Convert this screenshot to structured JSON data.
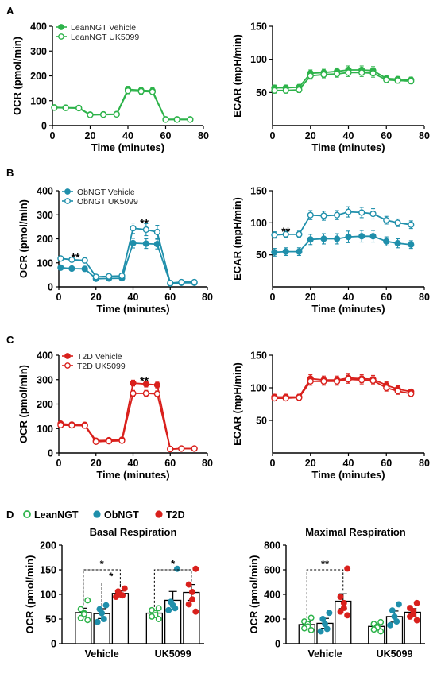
{
  "figure": {
    "panel_letters": [
      "A",
      "B",
      "C",
      "D"
    ],
    "colors": {
      "lean": "#2db34a",
      "ob": "#1f8fab",
      "t2d": "#d9201c",
      "axis": "#000000"
    }
  },
  "chart_data": [
    {
      "id": "A-OCR",
      "panel": "A",
      "type": "line",
      "xlabel": "Time (minutes)",
      "ylabel": "OCR (pmol/min)",
      "xlim": [
        0,
        80
      ],
      "ylim": [
        0,
        400
      ],
      "xticks": [
        0,
        20,
        40,
        60,
        80
      ],
      "yticks": [
        0,
        100,
        200,
        300,
        400
      ],
      "legend": [
        "LeanNGT Vehicle",
        "LeanNGT UK5099"
      ],
      "legend_position": "top-left",
      "marks": [],
      "series": [
        {
          "name": "LeanNGT Vehicle",
          "color": "#2db34a",
          "filled": true,
          "x": [
            1,
            7,
            14,
            20,
            27,
            34,
            40,
            47,
            53,
            60,
            66,
            73
          ],
          "y": [
            73,
            72,
            71,
            44,
            45,
            46,
            146,
            142,
            140,
            25,
            25,
            25
          ],
          "err": [
            4,
            4,
            4,
            4,
            4,
            4,
            12,
            12,
            12,
            3,
            3,
            3
          ]
        },
        {
          "name": "LeanNGT UK5099",
          "color": "#2db34a",
          "filled": false,
          "x": [
            1,
            7,
            14,
            20,
            27,
            34,
            40,
            47,
            53,
            60,
            66,
            73
          ],
          "y": [
            72,
            71,
            70,
            43,
            44,
            45,
            140,
            138,
            136,
            24,
            24,
            24
          ],
          "err": [
            4,
            4,
            4,
            4,
            4,
            4,
            12,
            12,
            12,
            3,
            3,
            3
          ]
        }
      ]
    },
    {
      "id": "A-ECAR",
      "panel": "A",
      "type": "line",
      "xlabel": "Time (minutes)",
      "ylabel": "ECAR (mpH/min)",
      "xlim": [
        0,
        80
      ],
      "ylim": [
        0,
        150
      ],
      "xticks": [
        0,
        20,
        40,
        60,
        80
      ],
      "yticks": [
        50,
        100,
        150
      ],
      "legend": [],
      "marks": [],
      "series": [
        {
          "name": "LeanNGT Vehicle",
          "color": "#2db34a",
          "filled": true,
          "x": [
            1,
            7,
            14,
            20,
            27,
            34,
            40,
            47,
            53,
            60,
            66,
            73
          ],
          "y": [
            57,
            57,
            58,
            79,
            80,
            82,
            84,
            84,
            83,
            71,
            70,
            69
          ],
          "err": [
            4,
            4,
            4,
            5,
            5,
            5,
            6,
            6,
            6,
            4,
            4,
            4
          ]
        },
        {
          "name": "LeanNGT UK5099",
          "color": "#2db34a",
          "filled": false,
          "x": [
            1,
            7,
            14,
            20,
            27,
            34,
            40,
            47,
            53,
            60,
            66,
            73
          ],
          "y": [
            53,
            53,
            54,
            75,
            77,
            78,
            80,
            80,
            79,
            69,
            68,
            67
          ],
          "err": [
            4,
            4,
            4,
            5,
            5,
            5,
            6,
            6,
            6,
            4,
            4,
            4
          ]
        }
      ]
    },
    {
      "id": "B-OCR",
      "panel": "B",
      "type": "line",
      "xlabel": "Time (minutes)",
      "ylabel": "OCR (pmol/min)",
      "xlim": [
        0,
        80
      ],
      "ylim": [
        0,
        400
      ],
      "xticks": [
        0,
        20,
        40,
        60,
        80
      ],
      "yticks": [
        0,
        100,
        200,
        300,
        400
      ],
      "legend": [
        "ObNGT Vehicle",
        "ObNGT UK5099"
      ],
      "legend_position": "top-left",
      "marks": [
        {
          "text": "**",
          "x": 9,
          "y": 128
        },
        {
          "text": "**",
          "x": 46,
          "y": 270
        }
      ],
      "series": [
        {
          "name": "ObNGT Vehicle",
          "color": "#1f8fab",
          "filled": true,
          "x": [
            1,
            7,
            14,
            20,
            27,
            34,
            40,
            47,
            53,
            60,
            66,
            73
          ],
          "y": [
            80,
            76,
            75,
            34,
            35,
            36,
            182,
            180,
            178,
            14,
            17,
            17
          ],
          "err": [
            6,
            6,
            6,
            8,
            8,
            8,
            20,
            20,
            20,
            6,
            6,
            6
          ]
        },
        {
          "name": "ObNGT UK5099",
          "color": "#1f8fab",
          "filled": false,
          "x": [
            1,
            7,
            14,
            20,
            27,
            34,
            40,
            47,
            53,
            60,
            66,
            73
          ],
          "y": [
            118,
            113,
            110,
            42,
            44,
            46,
            244,
            238,
            228,
            16,
            20,
            20
          ],
          "err": [
            8,
            8,
            8,
            8,
            8,
            8,
            22,
            25,
            28,
            6,
            6,
            6
          ]
        }
      ]
    },
    {
      "id": "B-ECAR",
      "panel": "B",
      "type": "line",
      "xlabel": "Time (minutes)",
      "ylabel": "ECAR (mpH/min)",
      "xlim": [
        0,
        80
      ],
      "ylim": [
        0,
        150
      ],
      "xticks": [
        0,
        20,
        40,
        60,
        80
      ],
      "yticks": [
        50,
        100,
        150
      ],
      "legend": [],
      "marks": [
        {
          "text": "**",
          "x": 7,
          "y": 88
        }
      ],
      "series": [
        {
          "name": "ObNGT Vehicle",
          "color": "#1f8fab",
          "filled": true,
          "x": [
            1,
            7,
            14,
            20,
            27,
            34,
            40,
            47,
            53,
            60,
            66,
            73
          ],
          "y": [
            54,
            55,
            55,
            74,
            75,
            75,
            78,
            79,
            79,
            71,
            68,
            66
          ],
          "err": [
            6,
            6,
            6,
            8,
            8,
            8,
            9,
            9,
            9,
            7,
            7,
            6
          ]
        },
        {
          "name": "ObNGT UK5099",
          "color": "#1f8fab",
          "filled": false,
          "x": [
            1,
            7,
            14,
            20,
            27,
            34,
            40,
            47,
            53,
            60,
            66,
            73
          ],
          "y": [
            81,
            82,
            82,
            112,
            111,
            112,
            117,
            116,
            114,
            104,
            100,
            97
          ],
          "err": [
            5,
            5,
            5,
            7,
            7,
            7,
            8,
            8,
            8,
            6,
            6,
            6
          ]
        }
      ]
    },
    {
      "id": "C-OCR",
      "panel": "C",
      "type": "line",
      "xlabel": "Time (minutes)",
      "ylabel": "OCR (pmol/min)",
      "xlim": [
        0,
        80
      ],
      "ylim": [
        0,
        400
      ],
      "xticks": [
        0,
        20,
        40,
        60,
        80
      ],
      "yticks": [
        0,
        100,
        200,
        300,
        400
      ],
      "legend": [
        "T2D Vehicle",
        "T2D UK5099"
      ],
      "legend_position": "top-left",
      "marks": [
        {
          "text": "**",
          "x": 46,
          "y": 300
        }
      ],
      "series": [
        {
          "name": "T2D Vehicle",
          "color": "#d9201c",
          "filled": true,
          "x": [
            1,
            7,
            14,
            20,
            27,
            34,
            40,
            47,
            53,
            60,
            66,
            73
          ],
          "y": [
            120,
            116,
            115,
            50,
            52,
            54,
            286,
            282,
            278,
            16,
            18,
            18
          ],
          "err": [
            5,
            5,
            5,
            6,
            6,
            6,
            12,
            12,
            12,
            3,
            3,
            3
          ]
        },
        {
          "name": "T2D UK5099",
          "color": "#d9201c",
          "filled": false,
          "x": [
            1,
            7,
            14,
            20,
            27,
            34,
            40,
            47,
            53,
            60,
            66,
            73
          ],
          "y": [
            114,
            113,
            112,
            46,
            48,
            50,
            244,
            244,
            242,
            16,
            18,
            18
          ],
          "err": [
            5,
            5,
            5,
            6,
            6,
            6,
            12,
            12,
            12,
            3,
            3,
            3
          ]
        }
      ]
    },
    {
      "id": "C-ECAR",
      "panel": "C",
      "type": "line",
      "xlabel": "Time (minutes)",
      "ylabel": "ECAR (mpH/min)",
      "xlim": [
        0,
        80
      ],
      "ylim": [
        0,
        150
      ],
      "xticks": [
        0,
        20,
        40,
        60,
        80
      ],
      "yticks": [
        50,
        100,
        150
      ],
      "legend": [],
      "marks": [],
      "series": [
        {
          "name": "T2D Vehicle",
          "color": "#d9201c",
          "filled": true,
          "x": [
            1,
            7,
            14,
            20,
            27,
            34,
            40,
            47,
            53,
            60,
            66,
            73
          ],
          "y": [
            86,
            86,
            86,
            114,
            112,
            112,
            115,
            114,
            113,
            104,
            98,
            94
          ],
          "err": [
            4,
            4,
            4,
            6,
            6,
            6,
            6,
            6,
            6,
            5,
            5,
            4
          ]
        },
        {
          "name": "T2D UK5099",
          "color": "#d9201c",
          "filled": false,
          "x": [
            1,
            7,
            14,
            20,
            27,
            34,
            40,
            47,
            53,
            60,
            66,
            73
          ],
          "y": [
            84,
            84,
            85,
            110,
            110,
            110,
            113,
            112,
            111,
            100,
            95,
            91
          ],
          "err": [
            4,
            4,
            4,
            6,
            6,
            6,
            6,
            6,
            6,
            5,
            5,
            4
          ]
        }
      ]
    },
    {
      "id": "D-Basal",
      "panel": "D",
      "type": "bar",
      "title": "Basal Respiration",
      "ylabel": "OCR (pmol/min)",
      "ylim": [
        0,
        200
      ],
      "yticks": [
        0,
        50,
        100,
        150,
        200
      ],
      "groups": [
        "Vehicle",
        "UK5099"
      ],
      "legend": [
        {
          "name": "LeanNGT",
          "color": "#2db34a"
        },
        {
          "name": "ObNGT",
          "color": "#1f8fab"
        },
        {
          "name": "T2D",
          "color": "#d9201c"
        }
      ],
      "bars": [
        {
          "group": 0,
          "series": "LeanNGT",
          "color": "#2db34a",
          "filled": false,
          "value": 63,
          "err": 9,
          "points": [
            88,
            70,
            62,
            60,
            52,
            48
          ]
        },
        {
          "group": 0,
          "series": "ObNGT",
          "color": "#1f8fab",
          "filled": true,
          "value": 61,
          "err": 10,
          "points": [
            78,
            70,
            62,
            50,
            44
          ]
        },
        {
          "group": 0,
          "series": "T2D",
          "color": "#d9201c",
          "filled": true,
          "value": 102,
          "err": 5,
          "points": [
            112,
            106,
            100,
            98,
            95
          ]
        },
        {
          "group": 1,
          "series": "LeanNGT",
          "color": "#2db34a",
          "filled": false,
          "value": 62,
          "err": 6,
          "points": [
            72,
            68,
            62,
            58,
            55,
            50
          ]
        },
        {
          "group": 1,
          "series": "ObNGT",
          "color": "#1f8fab",
          "filled": true,
          "value": 88,
          "err": 18,
          "points": [
            152,
            85,
            78,
            72,
            68
          ]
        },
        {
          "group": 1,
          "series": "T2D",
          "color": "#d9201c",
          "filled": true,
          "value": 104,
          "err": 16,
          "points": [
            152,
            120,
            105,
            90,
            80,
            65
          ]
        }
      ],
      "significance": [
        {
          "from": 0,
          "to": 2,
          "level": 150,
          "text": "*"
        },
        {
          "from": 1,
          "to": 2,
          "level": 125,
          "text": "*"
        },
        {
          "from": 3,
          "to": 5,
          "level": 150,
          "text": "*"
        }
      ]
    },
    {
      "id": "D-Maximal",
      "panel": "D",
      "type": "bar",
      "title": "Maximal Respiration",
      "ylabel": "OCR (pmol/min)",
      "ylim": [
        0,
        800
      ],
      "yticks": [
        0,
        200,
        400,
        600,
        800
      ],
      "groups": [
        "Vehicle",
        "UK5099"
      ],
      "bars": [
        {
          "group": 0,
          "series": "LeanNGT",
          "color": "#2db34a",
          "filled": false,
          "value": 155,
          "err": 25,
          "points": [
            210,
            180,
            160,
            140,
            125,
            110
          ]
        },
        {
          "group": 0,
          "series": "ObNGT",
          "color": "#1f8fab",
          "filled": true,
          "value": 165,
          "err": 40,
          "points": [
            250,
            200,
            160,
            120,
            100
          ]
        },
        {
          "group": 0,
          "series": "T2D",
          "color": "#d9201c",
          "filled": true,
          "value": 345,
          "err": 60,
          "points": [
            610,
            380,
            330,
            290,
            260,
            230
          ]
        },
        {
          "group": 1,
          "series": "LeanNGT",
          "color": "#2db34a",
          "filled": false,
          "value": 140,
          "err": 20,
          "points": [
            175,
            160,
            140,
            130,
            115,
            100
          ]
        },
        {
          "group": 1,
          "series": "ObNGT",
          "color": "#1f8fab",
          "filled": true,
          "value": 220,
          "err": 45,
          "points": [
            320,
            270,
            220,
            180,
            150
          ]
        },
        {
          "group": 1,
          "series": "T2D",
          "color": "#d9201c",
          "filled": true,
          "value": 255,
          "err": 30,
          "points": [
            330,
            290,
            265,
            240,
            220,
            190
          ]
        }
      ],
      "significance": [
        {
          "from": 0,
          "to": 2,
          "level": 600,
          "text": "**"
        }
      ]
    }
  ]
}
